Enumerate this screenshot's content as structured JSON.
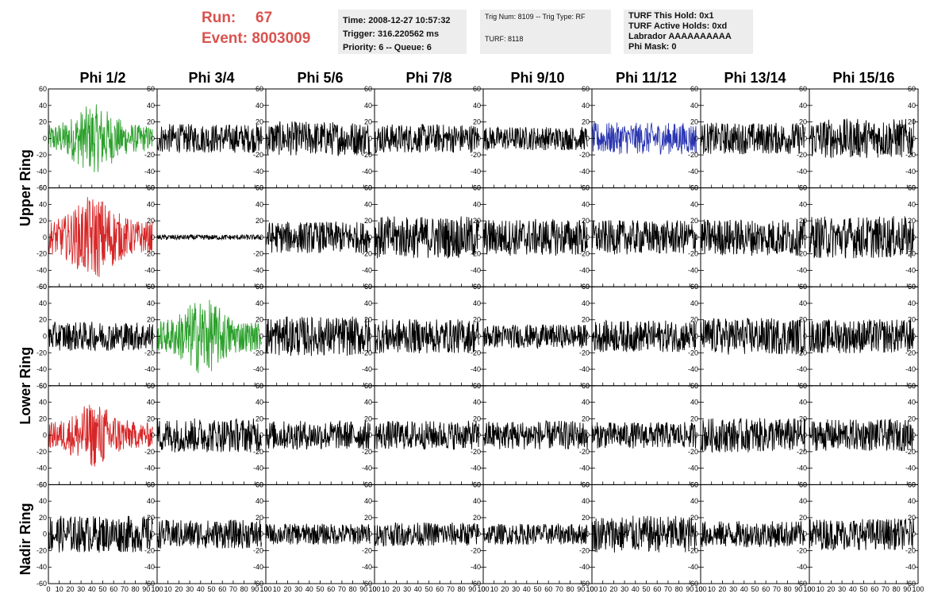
{
  "header": {
    "run_label": "Run:",
    "run_value": "67",
    "event_label": "Event:",
    "event_value": "8003009",
    "time_info": [
      "Time: 2008-12-27 10:57:32",
      "Trigger: 316.220562 ms",
      "Priority: 6 -- Queue: 6"
    ],
    "trig_info": [
      "Trig Num: 8109 -- Trig Type: RF",
      "",
      "TURF: 8118"
    ],
    "turf_info": [
      "TURF This Hold: 0x1",
      "TURF Active Holds: 0xd",
      "Labrador AAAAAAAAAA",
      "Phi Mask: 0"
    ],
    "accent_color": "#d9534f",
    "info_bg": "#ededed"
  },
  "chart_data": {
    "type": "line",
    "columns": [
      "Phi 1/2",
      "Phi 3/4",
      "Phi 5/6",
      "Phi 7/8",
      "Phi 9/10",
      "Phi 11/12",
      "Phi 13/14",
      "Phi 15/16"
    ],
    "ring_labels": [
      "Upper Ring",
      "Lower Ring",
      "Nadir Ring"
    ],
    "rows": 5,
    "xlim": [
      0,
      100
    ],
    "ylim": [
      -60,
      60
    ],
    "xticks": [
      0,
      10,
      20,
      30,
      40,
      50,
      60,
      70,
      80,
      90,
      100
    ],
    "yticks": [
      -60,
      -40,
      -20,
      0,
      20,
      40,
      60
    ],
    "samples": 260,
    "trace_span": [
      0,
      96
    ],
    "colors": {
      "default": "#000000",
      "green": "#2ca02c",
      "red": "#d62728",
      "blue": "#2a36b1"
    },
    "panels": [
      {
        "row": 0,
        "col": 0,
        "color": "green",
        "amplitude": 18
      },
      {
        "row": 0,
        "col": 1,
        "color": "default",
        "amplitude": 11
      },
      {
        "row": 0,
        "col": 2,
        "color": "default",
        "amplitude": 13
      },
      {
        "row": 0,
        "col": 3,
        "color": "default",
        "amplitude": 11
      },
      {
        "row": 0,
        "col": 4,
        "color": "default",
        "amplitude": 9
      },
      {
        "row": 0,
        "col": 5,
        "color": "blue",
        "amplitude": 12
      },
      {
        "row": 0,
        "col": 6,
        "color": "default",
        "amplitude": 12
      },
      {
        "row": 0,
        "col": 7,
        "color": "default",
        "amplitude": 15
      },
      {
        "row": 1,
        "col": 0,
        "color": "red",
        "amplitude": 22
      },
      {
        "row": 1,
        "col": 1,
        "color": "default",
        "amplitude": 2
      },
      {
        "row": 1,
        "col": 2,
        "color": "default",
        "amplitude": 12
      },
      {
        "row": 1,
        "col": 3,
        "color": "default",
        "amplitude": 16
      },
      {
        "row": 1,
        "col": 4,
        "color": "default",
        "amplitude": 14
      },
      {
        "row": 1,
        "col": 5,
        "color": "default",
        "amplitude": 13
      },
      {
        "row": 1,
        "col": 6,
        "color": "default",
        "amplitude": 14
      },
      {
        "row": 1,
        "col": 7,
        "color": "default",
        "amplitude": 16
      },
      {
        "row": 2,
        "col": 0,
        "color": "default",
        "amplitude": 11
      },
      {
        "row": 2,
        "col": 1,
        "color": "green",
        "amplitude": 20
      },
      {
        "row": 2,
        "col": 2,
        "color": "default",
        "amplitude": 15
      },
      {
        "row": 2,
        "col": 3,
        "color": "default",
        "amplitude": 13
      },
      {
        "row": 2,
        "col": 4,
        "color": "default",
        "amplitude": 9
      },
      {
        "row": 2,
        "col": 5,
        "color": "default",
        "amplitude": 12
      },
      {
        "row": 2,
        "col": 6,
        "color": "default",
        "amplitude": 14
      },
      {
        "row": 2,
        "col": 7,
        "color": "default",
        "amplitude": 13
      },
      {
        "row": 3,
        "col": 0,
        "color": "red",
        "amplitude": 17
      },
      {
        "row": 3,
        "col": 1,
        "color": "default",
        "amplitude": 13
      },
      {
        "row": 3,
        "col": 2,
        "color": "default",
        "amplitude": 11
      },
      {
        "row": 3,
        "col": 3,
        "color": "default",
        "amplitude": 11
      },
      {
        "row": 3,
        "col": 4,
        "color": "default",
        "amplitude": 11
      },
      {
        "row": 3,
        "col": 5,
        "color": "default",
        "amplitude": 10
      },
      {
        "row": 3,
        "col": 6,
        "color": "default",
        "amplitude": 13
      },
      {
        "row": 3,
        "col": 7,
        "color": "default",
        "amplitude": 12
      },
      {
        "row": 4,
        "col": 0,
        "color": "default",
        "amplitude": 14
      },
      {
        "row": 4,
        "col": 1,
        "color": "default",
        "amplitude": 11
      },
      {
        "row": 4,
        "col": 2,
        "color": "default",
        "amplitude": 8
      },
      {
        "row": 4,
        "col": 3,
        "color": "default",
        "amplitude": 9
      },
      {
        "row": 4,
        "col": 4,
        "color": "default",
        "amplitude": 8
      },
      {
        "row": 4,
        "col": 5,
        "color": "default",
        "amplitude": 14
      },
      {
        "row": 4,
        "col": 6,
        "color": "default",
        "amplitude": 10
      },
      {
        "row": 4,
        "col": 7,
        "color": "default",
        "amplitude": 12
      }
    ]
  }
}
